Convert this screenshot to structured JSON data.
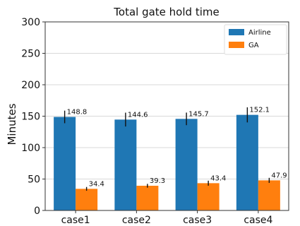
{
  "chart_data": {
    "type": "bar",
    "title": "Total gate hold time",
    "xlabel": "",
    "ylabel": "Minutes",
    "categories": [
      "case1",
      "case2",
      "case3",
      "case4"
    ],
    "ylim": [
      0,
      300
    ],
    "yticks": [
      0,
      50,
      100,
      150,
      200,
      250,
      300
    ],
    "grid": true,
    "legend_position": "top-right",
    "series": [
      {
        "name": "Airline",
        "color": "#1f77b4",
        "values": [
          148.8,
          144.6,
          145.7,
          152.1
        ],
        "labels": [
          "148.8",
          "144.6",
          "145.7",
          "152.1"
        ],
        "error": [
          10,
          11,
          10,
          12
        ]
      },
      {
        "name": "GA",
        "color": "#ff7f0e",
        "values": [
          34.4,
          39.3,
          43.4,
          47.9
        ],
        "labels": [
          "34.4",
          "39.3",
          "43.4",
          "47.9"
        ],
        "error": [
          3,
          3,
          4,
          4
        ]
      }
    ]
  }
}
